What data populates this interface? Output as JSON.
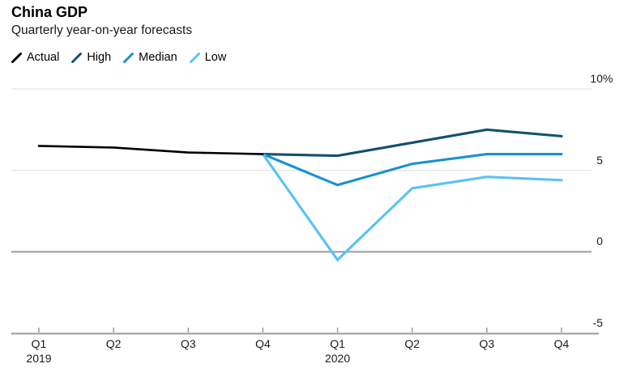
{
  "chart_data": {
    "type": "line",
    "title": "China GDP",
    "subtitle": "Quarterly year-on-year forecasts",
    "legend_position": "top-left",
    "grid": "horizontal",
    "ylim": [
      -5,
      10
    ],
    "y_ticks": [
      {
        "label": "10",
        "suffix": "%",
        "value": 10
      },
      {
        "label": "5",
        "suffix": "",
        "value": 5
      },
      {
        "label": "0",
        "suffix": "",
        "value": 0
      },
      {
        "label": "-5",
        "suffix": "",
        "value": -5
      }
    ],
    "x_categories": [
      "Q1",
      "Q2",
      "Q3",
      "Q4",
      "Q1",
      "Q2",
      "Q3",
      "Q4"
    ],
    "x_years": [
      {
        "label": "2019",
        "index": 0
      },
      {
        "label": "2020",
        "index": 4
      }
    ],
    "series": [
      {
        "name": "Actual",
        "color": "#000000",
        "x_start": 0,
        "values": [
          6.5,
          6.4,
          6.1,
          6.0
        ]
      },
      {
        "name": "High",
        "color": "#13506e",
        "x_start": 3,
        "values": [
          6.0,
          5.9,
          6.7,
          7.5,
          7.1
        ]
      },
      {
        "name": "Median",
        "color": "#1791d3",
        "x_start": 3,
        "values": [
          6.0,
          4.1,
          5.4,
          6.0,
          6.0
        ]
      },
      {
        "name": "Low",
        "color": "#58c2f5",
        "x_start": 3,
        "values": [
          6.0,
          -0.5,
          3.9,
          4.6,
          4.4
        ]
      }
    ],
    "axis_color": "#9a9a9a",
    "gridline_color": "#e8e8e8"
  }
}
